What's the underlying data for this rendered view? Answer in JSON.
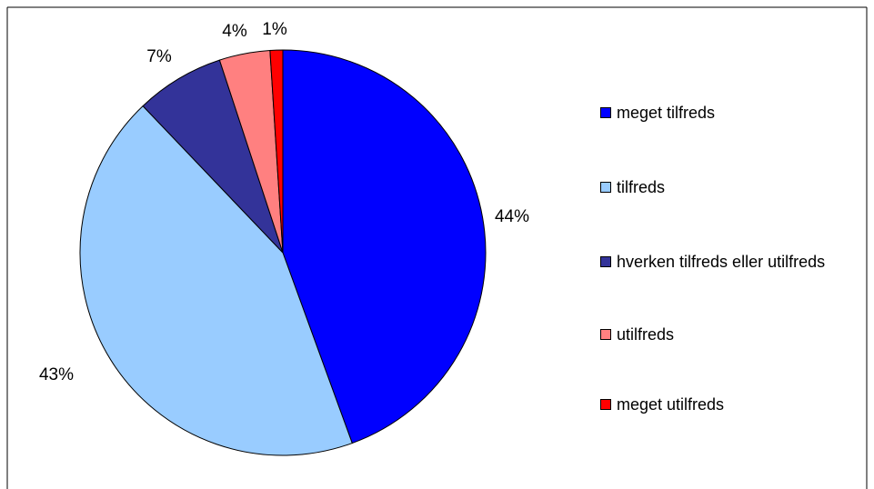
{
  "chart_data": {
    "type": "pie",
    "categories": [
      "meget tilfreds",
      "tilfreds",
      "hverken tilfreds eller utilfreds",
      "utilfreds",
      "meget utilfreds"
    ],
    "values": [
      44,
      43,
      7,
      4,
      1
    ],
    "data_labels": [
      "44%",
      "43%",
      "7%",
      "4%",
      "1%"
    ],
    "colors": [
      "#0000ff",
      "#99ccff",
      "#333399",
      "#ff8080",
      "#ff0000"
    ],
    "legend_position": "right",
    "title": ""
  }
}
